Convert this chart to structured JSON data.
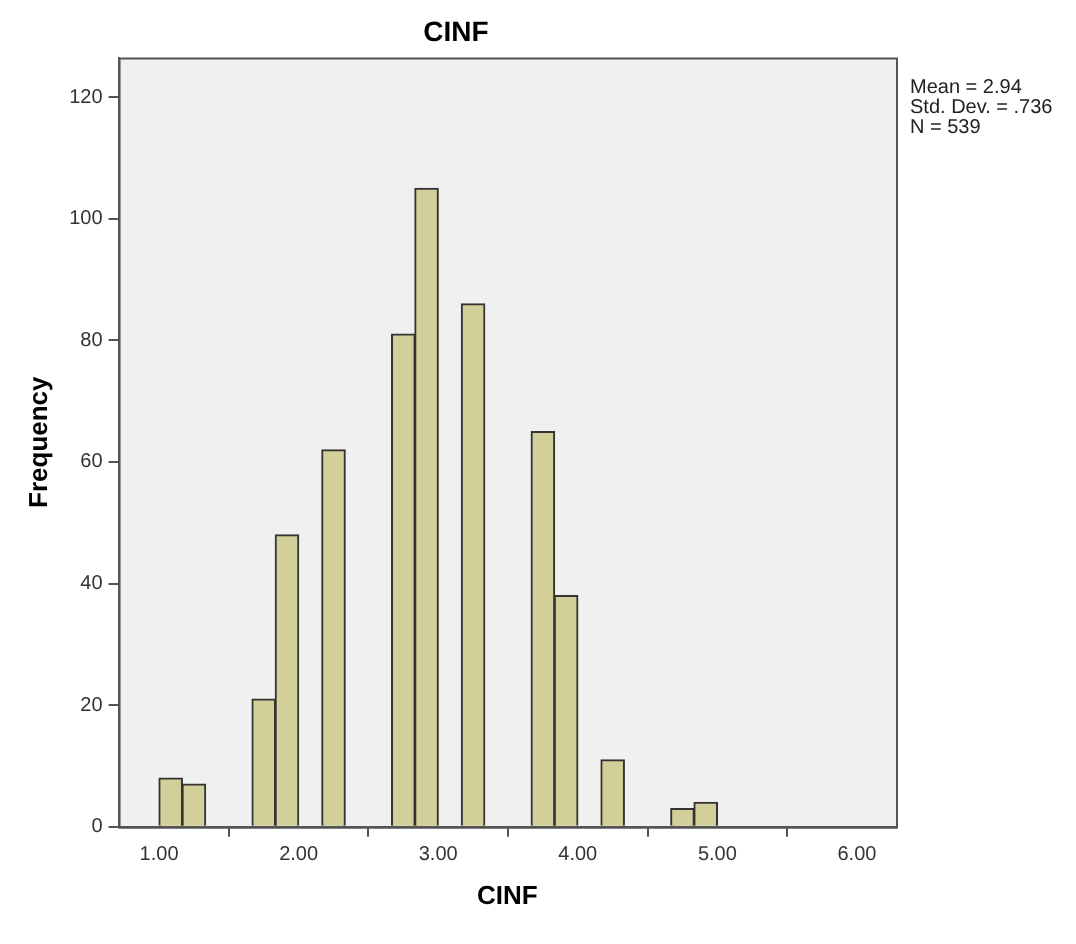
{
  "chart_data": {
    "type": "histogram",
    "title": "CINF",
    "xlabel": "CINF",
    "ylabel": "Frequency",
    "annotations": [
      "Mean = 2.94",
      "Std. Dev. = .736",
      "N = 539"
    ],
    "bins": [
      1.0,
      1.1667,
      1.3333,
      1.5,
      1.6667,
      1.8333,
      2.0,
      2.1667,
      2.3333,
      2.5,
      2.6667,
      2.8333,
      3.0,
      3.1667,
      3.3333,
      3.5,
      3.6667,
      3.8333,
      4.0,
      4.1667,
      4.3333,
      4.5,
      4.6667,
      4.8333,
      5.0
    ],
    "values": [
      8,
      7,
      0,
      0,
      21,
      48,
      0,
      62,
      0,
      0,
      81,
      105,
      0,
      86,
      0,
      0,
      65,
      38,
      0,
      11,
      0,
      0,
      3,
      4
    ],
    "color": "#d3cf98",
    "xlim": [
      0.71,
      6.28
    ],
    "xticks": [
      {
        "value": 1,
        "label": "1.00"
      },
      {
        "value": 2,
        "label": "2.00"
      },
      {
        "value": 3,
        "label": "3.00"
      },
      {
        "value": 4,
        "label": "4.00"
      },
      {
        "value": 5,
        "label": "5.00"
      },
      {
        "value": 6,
        "label": "6.00"
      }
    ],
    "ylim": [
      0,
      126.5
    ],
    "yticks": [
      0,
      20,
      40,
      60,
      80,
      100,
      120
    ],
    "grid": false,
    "legend": false
  }
}
